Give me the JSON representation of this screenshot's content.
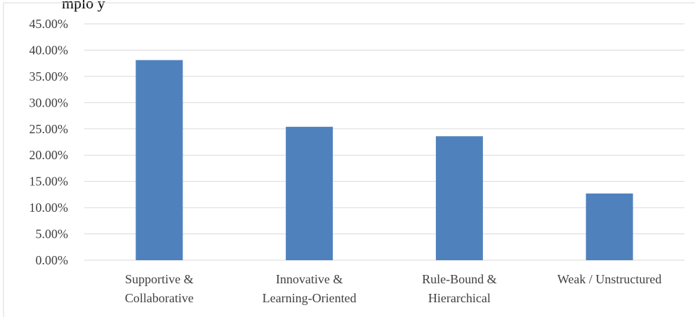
{
  "page": {
    "top_text_fragment": "mplo y"
  },
  "chart_data": {
    "type": "bar",
    "title": "",
    "xlabel": "",
    "ylabel": "",
    "categories": [
      [
        "Supportive &",
        "Collaborative"
      ],
      [
        "Innovative &",
        "Learning-Oriented"
      ],
      [
        "Rule-Bound &",
        "Hierarchical"
      ],
      [
        "Weak / Unstructured"
      ]
    ],
    "values": [
      38.1,
      25.4,
      23.6,
      12.7
    ],
    "ylim": [
      0,
      45
    ],
    "yticks": [
      "0.00%",
      "5.00%",
      "10.00%",
      "15.00%",
      "20.00%",
      "25.00%",
      "30.00%",
      "35.00%",
      "40.00%",
      "45.00%"
    ],
    "grid": true,
    "legend": "none",
    "bar_color": "#4F81BD",
    "grid_color": "#D9D9D9"
  }
}
